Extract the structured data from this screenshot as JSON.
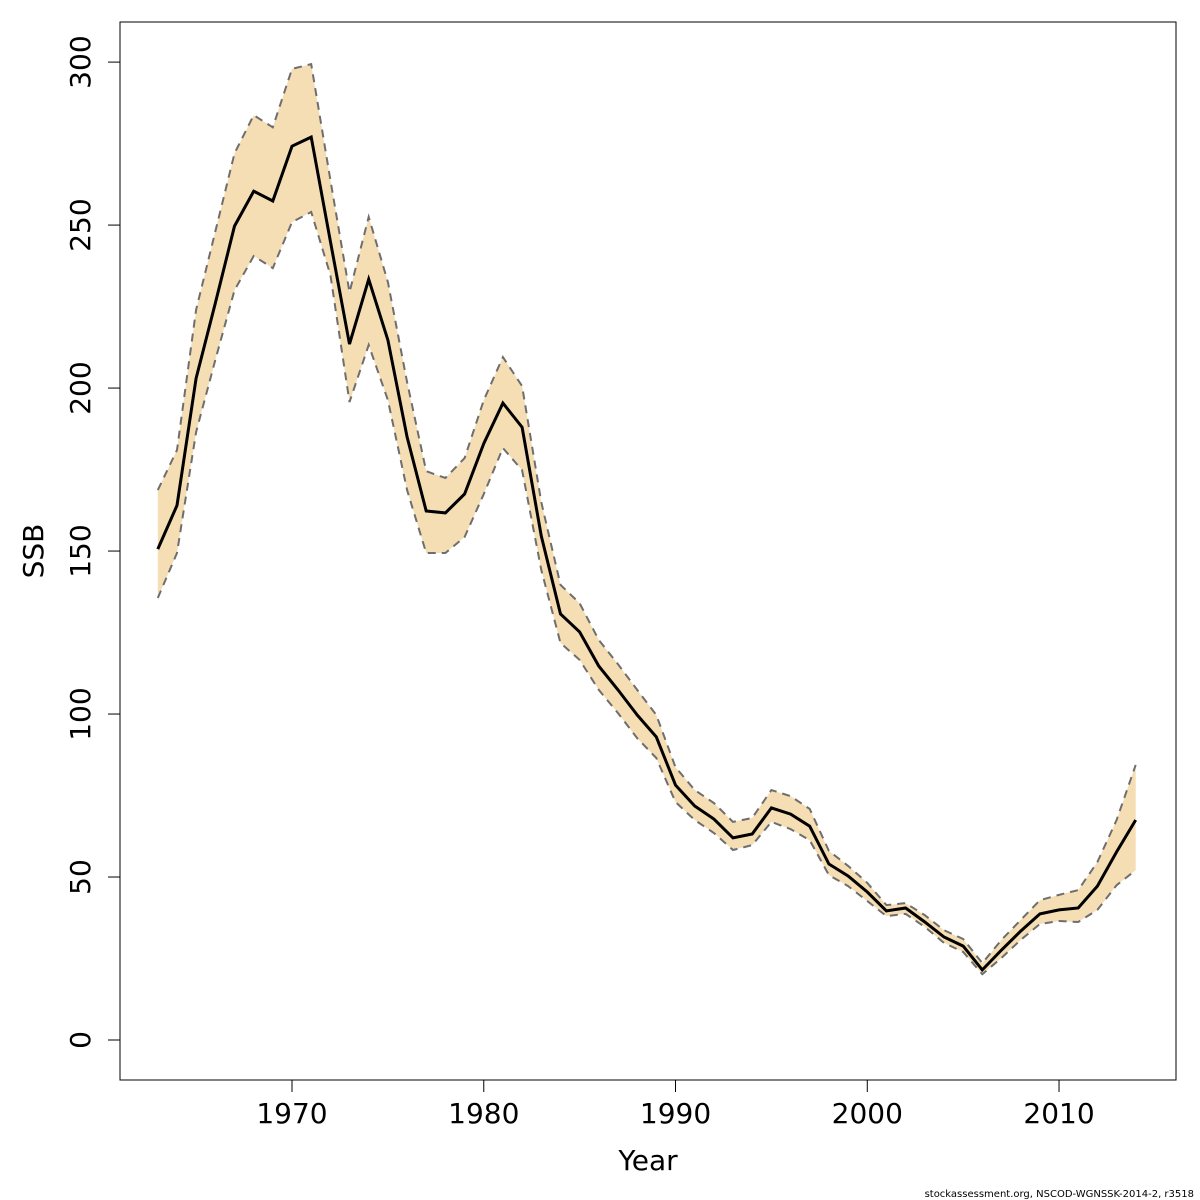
{
  "chart_data": {
    "type": "line-band",
    "x_label": "Year",
    "y_label": "SSB",
    "footnote": "stockassessment.org, NSCOD-WGNSSK-2014-2, r3518",
    "x": [
      1963,
      1964,
      1965,
      1966,
      1967,
      1968,
      1969,
      1970,
      1971,
      1972,
      1973,
      1974,
      1975,
      1976,
      1977,
      1978,
      1979,
      1980,
      1981,
      1982,
      1983,
      1984,
      1985,
      1986,
      1987,
      1988,
      1989,
      1990,
      1991,
      1992,
      1993,
      1994,
      1995,
      1996,
      1997,
      1998,
      1999,
      2000,
      2001,
      2002,
      2003,
      2004,
      2005,
      2006,
      2007,
      2008,
      2009,
      2010,
      2011,
      2012,
      2013,
      2014
    ],
    "values": [
      150.6,
      164,
      203,
      226,
      249.7,
      260.4,
      257.4,
      274.2,
      277,
      245,
      213.5,
      233.4,
      214.7,
      185,
      162.3,
      161.7,
      167.5,
      183,
      195.4,
      188,
      154.6,
      130.7,
      125.2,
      114.7,
      107.4,
      99.7,
      93,
      78.2,
      71.8,
      67.8,
      62,
      63.2,
      71.2,
      69.3,
      65.6,
      54,
      50.3,
      45.4,
      39.6,
      40.5,
      36.2,
      31.6,
      28.8,
      21.5,
      27.6,
      33.4,
      38.7,
      39.9,
      40.5,
      47.2,
      57.7,
      67.5
    ],
    "upper": [
      168.7,
      181,
      224,
      248,
      272,
      283.7,
      280,
      297.9,
      299.4,
      263.8,
      229.4,
      252.5,
      232.5,
      201.8,
      174.5,
      172.4,
      178.5,
      196.3,
      209.5,
      200.6,
      165,
      139.6,
      134,
      122.7,
      115.3,
      107.4,
      99.7,
      83.7,
      76.7,
      72.7,
      66.9,
      68.1,
      76.7,
      74.8,
      70.9,
      58,
      53.4,
      48.2,
      41.4,
      42,
      38.3,
      33.7,
      31,
      23.6,
      30.7,
      36.8,
      42.9,
      44.5,
      46,
      54.6,
      67.5,
      84.4
    ],
    "lower": [
      135.6,
      149.4,
      186.5,
      208.6,
      230,
      240.5,
      236.8,
      250.9,
      254,
      234.7,
      195.7,
      213.2,
      196.3,
      168.7,
      149.4,
      149.4,
      154.3,
      167.5,
      181.6,
      174.8,
      144.2,
      121.8,
      116.6,
      107.4,
      100.3,
      92.6,
      86.5,
      73,
      67.5,
      63.5,
      58.3,
      59.8,
      66.9,
      64.7,
      61.3,
      50.6,
      47.2,
      42.6,
      38,
      38.7,
      34.7,
      29.8,
      27,
      20.2,
      25.2,
      30.7,
      35.6,
      36.5,
      36.2,
      39.9,
      47.5,
      52.1
    ],
    "line_color": "#000000",
    "band_color": "#f5deb3",
    "bound_color": "#6e6e6e",
    "xlim": [
      1961.03,
      2016.1
    ],
    "ylim": [
      -12.27,
      312.3
    ],
    "xticks": [
      1970,
      1980,
      1990,
      2000,
      2010
    ],
    "yticks": [
      0,
      50,
      100,
      150,
      200,
      250,
      300
    ]
  }
}
